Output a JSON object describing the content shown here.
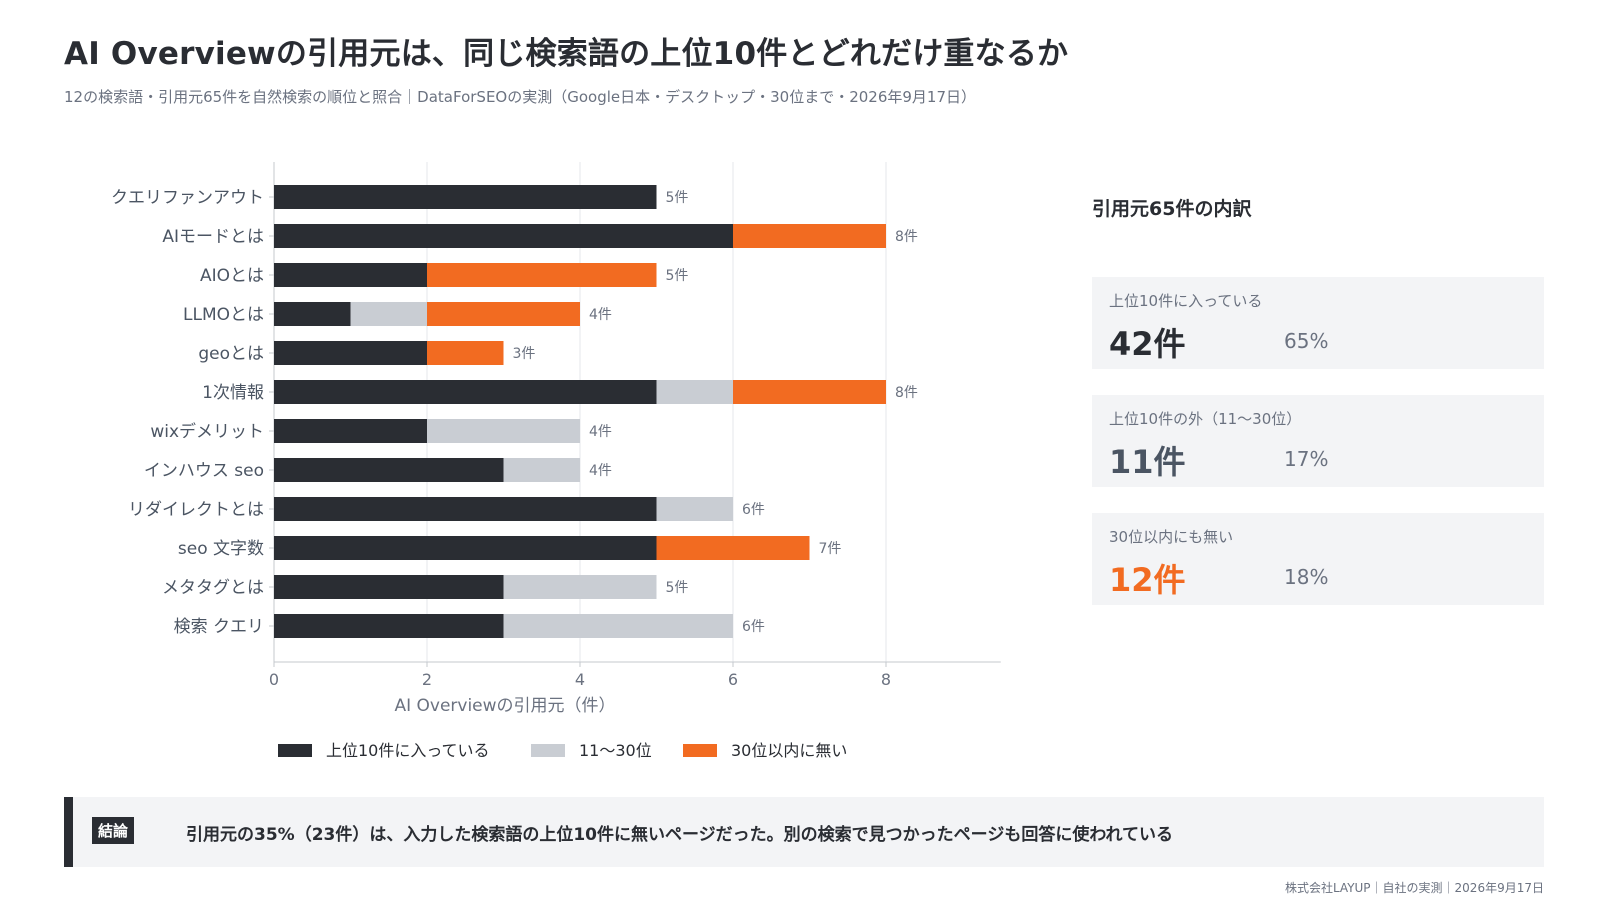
{
  "header": {
    "title": "AI Overviewの引用元は、同じ検索語の上位10件とどれだけ重なるか",
    "subtitle": "12の検索語・引用元65件を自然検索の順位と照合｜DataForSEOの実測（Google日本・デスクトップ・30位まで・2026年9月17日）"
  },
  "chart_data": {
    "type": "bar",
    "orientation": "horizontal",
    "stacked": true,
    "categories": [
      "クエリファンアウト",
      "AIモードとは",
      "AIOとは",
      "LLMOとは",
      "geoとは",
      "1次情報",
      "wixデメリット",
      "インハウス seo",
      "リダイレクトとは",
      "seo 文字数",
      "メタタグとは",
      "検索 クエリ"
    ],
    "series": [
      {
        "name": "上位10件に入っている",
        "color": "#2a2d33",
        "values": [
          5,
          6,
          2,
          1,
          2,
          5,
          2,
          3,
          5,
          5,
          3,
          3
        ]
      },
      {
        "name": "11〜30位",
        "color": "#c9cdd3",
        "values": [
          0,
          0,
          0,
          1,
          0,
          1,
          2,
          1,
          1,
          0,
          2,
          3
        ]
      },
      {
        "name": "30位以内に無い",
        "color": "#f26b21",
        "values": [
          0,
          2,
          3,
          2,
          1,
          2,
          0,
          0,
          0,
          2,
          0,
          0
        ]
      }
    ],
    "total_labels": [
      "5件",
      "8件",
      "5件",
      "4件",
      "3件",
      "8件",
      "4件",
      "4件",
      "6件",
      "7件",
      "5件",
      "6件"
    ],
    "xlabel": "AI Overviewの引用元（件）",
    "xlim": [
      0,
      9.5
    ],
    "xticks": [
      "0",
      "2",
      "4",
      "6",
      "8"
    ],
    "grid": true,
    "legend_position": "bottom"
  },
  "panel": {
    "title": "引用元65件の内訳",
    "cards": [
      {
        "label": "上位10件に入っている",
        "count": "42件",
        "pct": "65%",
        "color": "#2a2d33"
      },
      {
        "label": "上位10件の外（11〜30位）",
        "count": "11件",
        "pct": "17%",
        "color": "#4b5563"
      },
      {
        "label": "30位以内にも無い",
        "count": "12件",
        "pct": "18%",
        "color": "#f26b21"
      }
    ]
  },
  "conclusion": {
    "badge": "結論",
    "text": "引用元の35%（23件）は、入力した検索語の上位10件に無いページだった。別の検索で見つかったページも回答に使われている"
  },
  "footer": "株式会社LAYUP｜自社の実測｜2026年9月17日"
}
